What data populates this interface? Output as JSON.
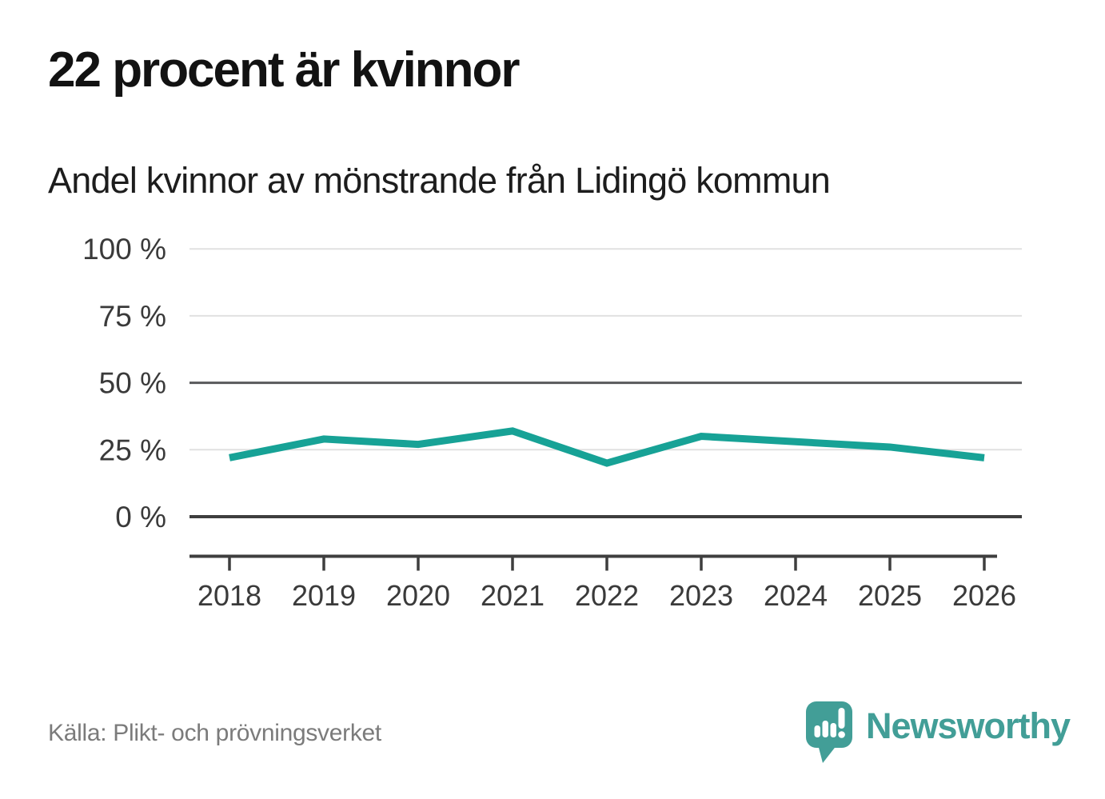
{
  "header": {
    "title": "22 procent är kvinnor",
    "subtitle": "Andel kvinnor av mönstrande från Lidingö kommun"
  },
  "footer": {
    "source": "Källa: Plikt- och prövningsverket",
    "brand": "Newsworthy",
    "logo_icon": "newsworthy-speech-bubble-bar-chart-icon"
  },
  "colors": {
    "line": "#17A296",
    "brand_teal": "#429E97",
    "grid_light": "#E1E1E1",
    "grid_mid": "#58595B",
    "axis_dark": "#3E3E3E",
    "tick_text": "#3A3A3A",
    "muted_text": "#7B7B7B"
  },
  "chart_data": {
    "type": "line",
    "title": "22 procent är kvinnor",
    "subtitle": "Andel kvinnor av mönstrande från Lidingö kommun",
    "categories": [
      "2018",
      "2019",
      "2020",
      "2021",
      "2022",
      "2023",
      "2024",
      "2025",
      "2026"
    ],
    "series": [
      {
        "name": "Andel kvinnor av mönstrande",
        "values": [
          22,
          29,
          27,
          32,
          20,
          30,
          28,
          26,
          22
        ],
        "color": "#17A296"
      }
    ],
    "unit": "%",
    "ylim": [
      0,
      100
    ],
    "yticks": [
      0,
      25,
      50,
      75,
      100
    ],
    "ytick_suffix": " %",
    "grid": "horizontal",
    "emphasized_gridlines": [
      0,
      50
    ],
    "legend": "none",
    "source": "Källa: Plikt- och prövningsverket"
  }
}
